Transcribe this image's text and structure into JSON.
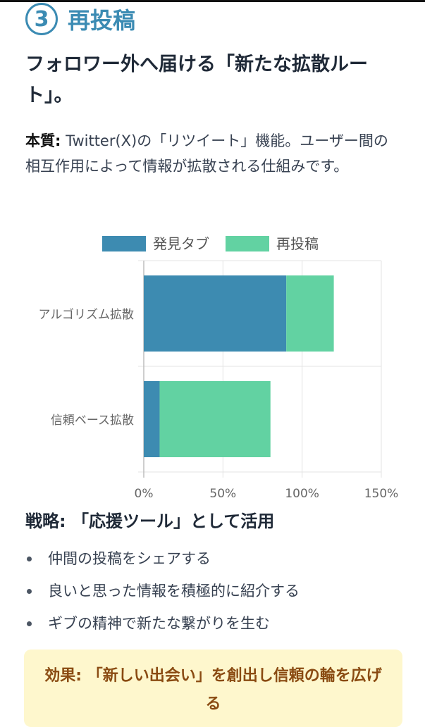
{
  "section": {
    "number": "3",
    "title": "再投稿"
  },
  "subtitle": "フォロワー外へ届ける「新たな拡散ルート」。",
  "essence": {
    "label": "本質:",
    "text": "Twitter(X)の「リツイート」機能。ユーザー間の相互作用によって情報が拡散される仕組みです。"
  },
  "chart_data": {
    "type": "bar",
    "orientation": "horizontal",
    "stacked": true,
    "categories": [
      "アルゴリズム拡散",
      "信頼ベース拡散"
    ],
    "series": [
      {
        "name": "発見タブ",
        "values": [
          90,
          10
        ],
        "color": "#3d8bb1"
      },
      {
        "name": "再投稿",
        "values": [
          30,
          70
        ],
        "color": "#62d2a2"
      }
    ],
    "xlim": [
      0,
      150
    ],
    "xticks": [
      0,
      50,
      100,
      150
    ],
    "tick_suffix": "%",
    "grid": true,
    "legend_position": "top"
  },
  "strategy": {
    "title": "戦略: 「応援ツール」として活用",
    "items": [
      "仲間の投稿をシェアする",
      "良いと思った情報を積極的に紹介する",
      "ギブの精神で新たな繋がりを生む"
    ]
  },
  "effect": {
    "text": "効果: 「新しい出会い」を創出し信頼の輪を広げる"
  }
}
